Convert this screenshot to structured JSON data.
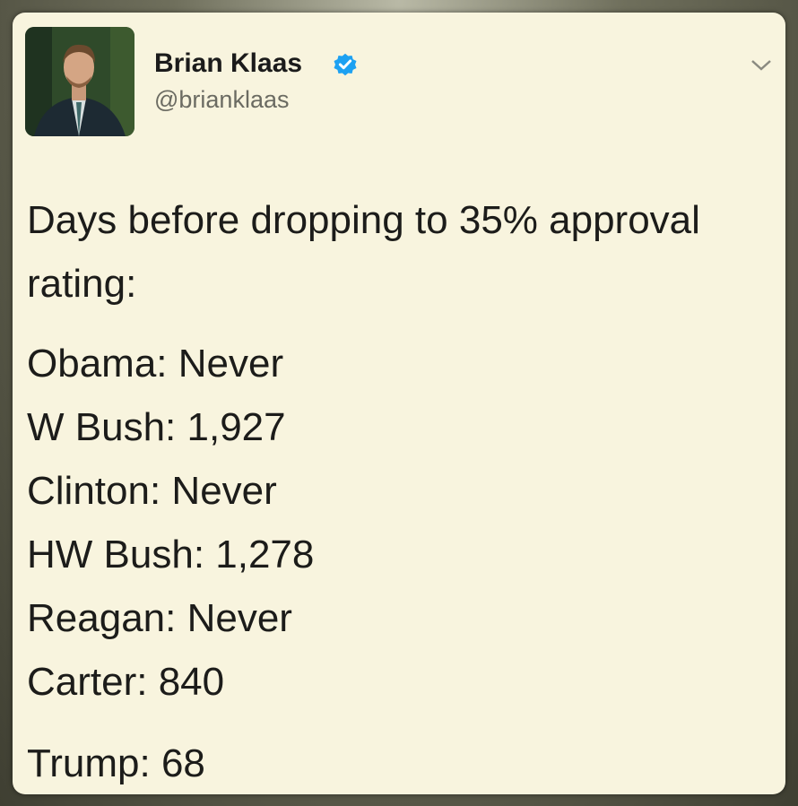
{
  "tweet": {
    "author": {
      "name": "Brian Klaas",
      "handle": "@brianklaas"
    },
    "text": "Days before dropping to 35% approval rating:",
    "lines": [
      "Obama: Never",
      "W Bush: 1,927",
      "Clinton: Never",
      "HW Bush: 1,278",
      "Reagan: Never",
      "Carter: 840",
      "Trump: 68"
    ]
  }
}
